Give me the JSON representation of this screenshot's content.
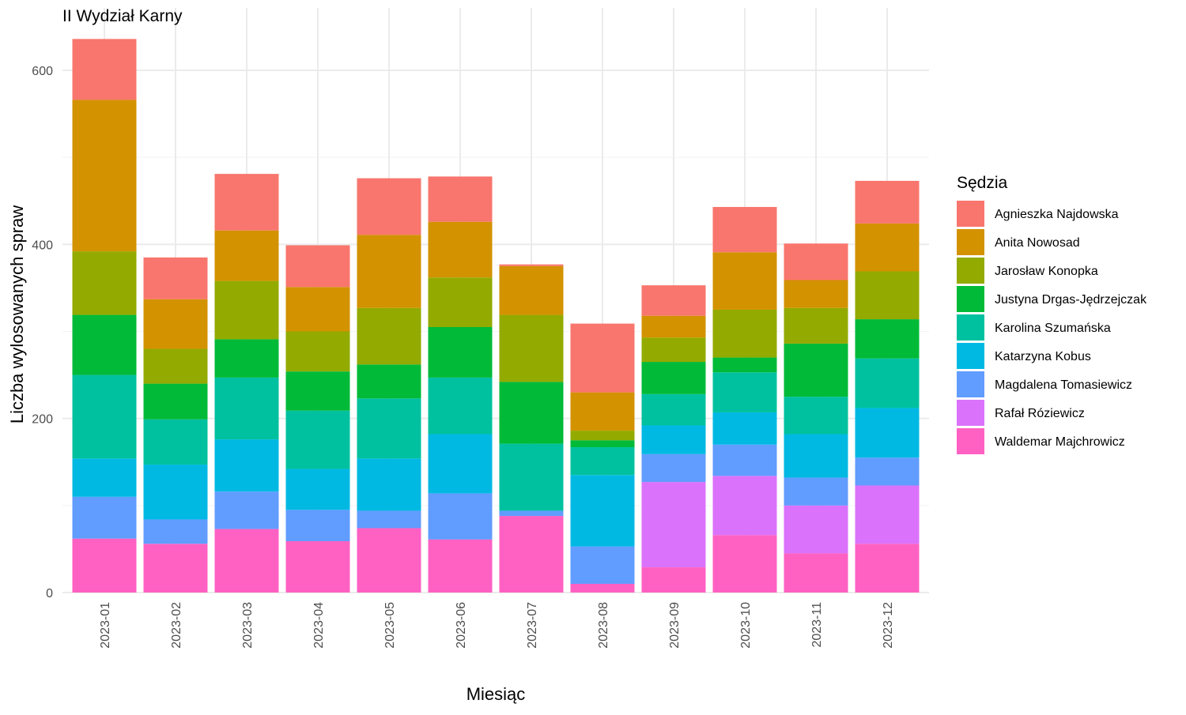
{
  "chart_data": {
    "type": "bar",
    "stacked": true,
    "title": "II Wydział Karny",
    "xlabel": "Miesiąc",
    "ylabel": "Liczba wylosowanych spraw",
    "ylim": [
      0,
      640
    ],
    "yticks": [
      0,
      200,
      400,
      600
    ],
    "grid": true,
    "legend_title": "Sędzia",
    "legend_position": "right",
    "categories": [
      "2023-01",
      "2023-02",
      "2023-03",
      "2023-04",
      "2023-05",
      "2023-06",
      "2023-07",
      "2023-08",
      "2023-09",
      "2023-10",
      "2023-11",
      "2023-12"
    ],
    "series": [
      {
        "name": "Agnieszka Najdowska",
        "color": "#F8766D",
        "values": [
          70,
          48,
          65,
          48,
          65,
          52,
          2,
          79,
          35,
          52,
          42,
          49
        ]
      },
      {
        "name": "Anita Nowosad",
        "color": "#D39200",
        "values": [
          174,
          57,
          58,
          51,
          84,
          64,
          56,
          44,
          25,
          66,
          32,
          55
        ]
      },
      {
        "name": "Jarosław Konopka",
        "color": "#93AA00",
        "values": [
          73,
          40,
          67,
          46,
          65,
          57,
          77,
          11,
          28,
          55,
          41,
          55
        ]
      },
      {
        "name": "Justyna Drgas-Jędrzejczak",
        "color": "#00BA38",
        "values": [
          69,
          41,
          44,
          45,
          39,
          58,
          71,
          8,
          37,
          17,
          61,
          45
        ]
      },
      {
        "name": "Karolina Szumańska",
        "color": "#00C19F",
        "values": [
          96,
          52,
          71,
          67,
          69,
          65,
          77,
          32,
          36,
          46,
          43,
          57
        ]
      },
      {
        "name": "Katarzyna Kobus",
        "color": "#00B9E3",
        "values": [
          44,
          63,
          60,
          47,
          60,
          68,
          0,
          82,
          33,
          37,
          50,
          57
        ]
      },
      {
        "name": "Magdalena Tomasiewicz",
        "color": "#619CFF",
        "values": [
          48,
          28,
          43,
          36,
          20,
          53,
          6,
          43,
          32,
          36,
          32,
          32
        ]
      },
      {
        "name": "Rafał Róziewicz",
        "color": "#DB72FB",
        "values": [
          0,
          0,
          0,
          0,
          0,
          0,
          0,
          0,
          98,
          68,
          55,
          67
        ]
      },
      {
        "name": "Waldemar Majchrowicz",
        "color": "#FF61C3",
        "values": [
          62,
          56,
          73,
          59,
          74,
          61,
          88,
          10,
          29,
          66,
          45,
          56
        ]
      }
    ]
  }
}
